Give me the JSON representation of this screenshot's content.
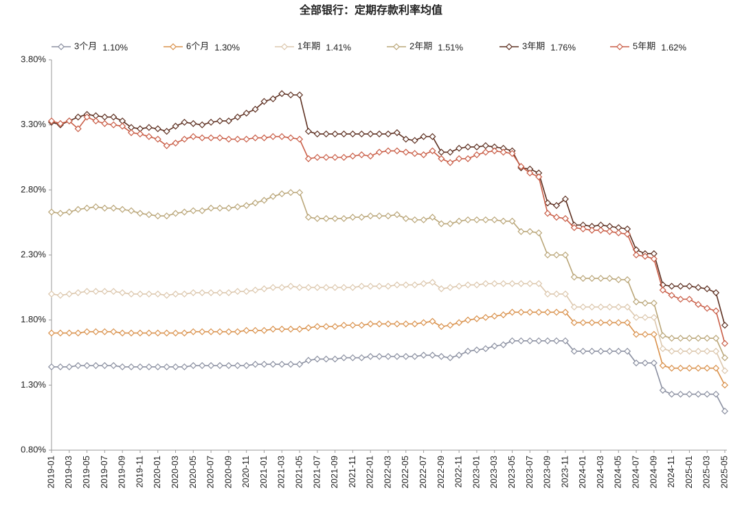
{
  "chart_data": {
    "type": "line",
    "title": "全部银行：定期存款利率均值",
    "categories": [
      "2019-01",
      null,
      "2019-03",
      null,
      "2019-05",
      null,
      "2019-07",
      null,
      "2019-09",
      null,
      "2019-11",
      null,
      "2020-01",
      null,
      "2020-03",
      null,
      "2020-05",
      null,
      "2020-07",
      null,
      "2020-09",
      null,
      "2020-11",
      null,
      "2021-01",
      null,
      "2021-03",
      null,
      "2021-05",
      null,
      "2021-07",
      null,
      "2021-09",
      null,
      "2021-11",
      null,
      "2022-01",
      null,
      "2022-03",
      null,
      "2022-05",
      null,
      "2022-07",
      null,
      "2022-09",
      null,
      "2022-11",
      null,
      "2023-01",
      null,
      "2023-03",
      null,
      "2023-05",
      null,
      "2023-07",
      null,
      "2023-09",
      null,
      "2023-11",
      null,
      "2024-01",
      null,
      "2024-03",
      null,
      "2024-05",
      null,
      "2024-07",
      null,
      "2024-09",
      null,
      "2024-11",
      null,
      "2025-01",
      null,
      "2025-03",
      null,
      "2025-05"
    ],
    "ylim": [
      0.8,
      3.8
    ],
    "yticks": [
      {
        "value": 0.8,
        "label": "0.80%"
      },
      {
        "value": 1.3,
        "label": "1.30%"
      },
      {
        "value": 1.8,
        "label": "1.80%"
      },
      {
        "value": 2.3,
        "label": "2.30%"
      },
      {
        "value": 2.8,
        "label": "2.80%"
      },
      {
        "value": 3.3,
        "label": "3.30%"
      },
      {
        "value": 3.8,
        "label": "3.80%"
      }
    ],
    "grid": false,
    "legend": "top",
    "series": [
      {
        "name": "3个月",
        "last_label": "1.10%",
        "color": "#8a8fa0",
        "values": [
          1.44,
          1.44,
          1.44,
          1.45,
          1.45,
          1.45,
          1.45,
          1.45,
          1.44,
          1.44,
          1.44,
          1.44,
          1.44,
          1.44,
          1.44,
          1.44,
          1.45,
          1.45,
          1.45,
          1.45,
          1.45,
          1.45,
          1.45,
          1.46,
          1.46,
          1.46,
          1.46,
          1.46,
          1.46,
          1.49,
          1.5,
          1.5,
          1.5,
          1.51,
          1.51,
          1.51,
          1.52,
          1.52,
          1.52,
          1.52,
          1.52,
          1.52,
          1.53,
          1.53,
          1.52,
          1.51,
          1.53,
          1.56,
          1.57,
          1.58,
          1.6,
          1.61,
          1.64,
          1.64,
          1.64,
          1.64,
          1.64,
          1.64,
          1.64,
          1.56,
          1.56,
          1.56,
          1.56,
          1.56,
          1.56,
          1.56,
          1.47,
          1.47,
          1.47,
          1.26,
          1.23,
          1.23,
          1.23,
          1.23,
          1.23,
          1.23,
          1.1
        ]
      },
      {
        "name": "6个月",
        "last_label": "1.30%",
        "color": "#d9904a",
        "values": [
          1.7,
          1.7,
          1.7,
          1.7,
          1.71,
          1.71,
          1.71,
          1.71,
          1.7,
          1.7,
          1.7,
          1.7,
          1.7,
          1.7,
          1.7,
          1.7,
          1.71,
          1.71,
          1.71,
          1.71,
          1.71,
          1.71,
          1.72,
          1.72,
          1.72,
          1.73,
          1.73,
          1.73,
          1.73,
          1.74,
          1.75,
          1.75,
          1.75,
          1.76,
          1.76,
          1.76,
          1.77,
          1.77,
          1.77,
          1.77,
          1.77,
          1.77,
          1.78,
          1.79,
          1.75,
          1.76,
          1.78,
          1.8,
          1.81,
          1.82,
          1.83,
          1.84,
          1.86,
          1.86,
          1.86,
          1.86,
          1.86,
          1.86,
          1.86,
          1.78,
          1.78,
          1.78,
          1.78,
          1.78,
          1.78,
          1.78,
          1.69,
          1.69,
          1.69,
          1.45,
          1.43,
          1.43,
          1.43,
          1.43,
          1.43,
          1.43,
          1.3
        ]
      },
      {
        "name": "1年期",
        "last_label": "1.41%",
        "color": "#dcc7ad",
        "values": [
          2.0,
          1.99,
          2.0,
          2.01,
          2.02,
          2.02,
          2.02,
          2.02,
          2.01,
          2.0,
          2.0,
          2.0,
          2.0,
          1.99,
          2.0,
          2.0,
          2.01,
          2.01,
          2.01,
          2.01,
          2.01,
          2.02,
          2.02,
          2.03,
          2.04,
          2.05,
          2.05,
          2.06,
          2.05,
          2.05,
          2.05,
          2.05,
          2.05,
          2.05,
          2.05,
          2.06,
          2.06,
          2.06,
          2.06,
          2.07,
          2.07,
          2.07,
          2.08,
          2.09,
          2.04,
          2.05,
          2.06,
          2.07,
          2.07,
          2.08,
          2.08,
          2.08,
          2.08,
          2.08,
          2.08,
          2.08,
          2.0,
          2.0,
          2.0,
          1.9,
          1.9,
          1.9,
          1.9,
          1.9,
          1.9,
          1.9,
          1.82,
          1.82,
          1.82,
          1.58,
          1.56,
          1.56,
          1.56,
          1.56,
          1.56,
          1.56,
          1.41
        ]
      },
      {
        "name": "2年期",
        "last_label": "1.51%",
        "color": "#b9a577",
        "values": [
          2.63,
          2.62,
          2.63,
          2.65,
          2.66,
          2.67,
          2.66,
          2.66,
          2.65,
          2.64,
          2.62,
          2.61,
          2.6,
          2.6,
          2.62,
          2.63,
          2.64,
          2.64,
          2.66,
          2.66,
          2.66,
          2.67,
          2.68,
          2.7,
          2.72,
          2.75,
          2.77,
          2.78,
          2.78,
          2.59,
          2.58,
          2.58,
          2.58,
          2.58,
          2.59,
          2.59,
          2.6,
          2.6,
          2.6,
          2.61,
          2.58,
          2.57,
          2.57,
          2.59,
          2.54,
          2.54,
          2.56,
          2.57,
          2.57,
          2.57,
          2.57,
          2.56,
          2.56,
          2.48,
          2.48,
          2.47,
          2.3,
          2.3,
          2.3,
          2.13,
          2.12,
          2.12,
          2.12,
          2.12,
          2.11,
          2.11,
          1.94,
          1.93,
          1.93,
          1.68,
          1.66,
          1.66,
          1.66,
          1.66,
          1.66,
          1.66,
          1.51
        ]
      },
      {
        "name": "3年期",
        "last_label": "1.76%",
        "color": "#5c2e1f",
        "values": [
          3.32,
          3.3,
          3.33,
          3.36,
          3.38,
          3.37,
          3.36,
          3.36,
          3.33,
          3.28,
          3.27,
          3.28,
          3.27,
          3.25,
          3.29,
          3.32,
          3.31,
          3.3,
          3.32,
          3.33,
          3.33,
          3.36,
          3.39,
          3.42,
          3.48,
          3.5,
          3.54,
          3.53,
          3.53,
          3.25,
          3.23,
          3.23,
          3.23,
          3.23,
          3.23,
          3.23,
          3.23,
          3.23,
          3.23,
          3.24,
          3.19,
          3.18,
          3.21,
          3.21,
          3.09,
          3.09,
          3.12,
          3.13,
          3.13,
          3.14,
          3.13,
          3.12,
          3.1,
          2.97,
          2.96,
          2.93,
          2.7,
          2.68,
          2.73,
          2.53,
          2.53,
          2.52,
          2.53,
          2.52,
          2.51,
          2.5,
          2.34,
          2.31,
          2.31,
          2.07,
          2.06,
          2.06,
          2.06,
          2.05,
          2.04,
          2.01,
          1.76
        ]
      },
      {
        "name": "5年期",
        "last_label": "1.62%",
        "color": "#c95c45",
        "values": [
          3.33,
          3.31,
          3.33,
          3.27,
          3.36,
          3.33,
          3.31,
          3.3,
          3.29,
          3.24,
          3.23,
          3.21,
          3.19,
          3.14,
          3.16,
          3.19,
          3.21,
          3.2,
          3.2,
          3.2,
          3.19,
          3.19,
          3.19,
          3.2,
          3.2,
          3.21,
          3.21,
          3.2,
          3.19,
          3.04,
          3.05,
          3.05,
          3.05,
          3.05,
          3.06,
          3.07,
          3.06,
          3.09,
          3.1,
          3.1,
          3.09,
          3.08,
          3.07,
          3.1,
          3.04,
          3.01,
          3.04,
          3.04,
          3.07,
          3.09,
          3.1,
          3.09,
          3.08,
          2.98,
          2.93,
          2.9,
          2.62,
          2.59,
          2.58,
          2.51,
          2.5,
          2.49,
          2.49,
          2.48,
          2.47,
          2.46,
          2.3,
          2.29,
          2.27,
          2.03,
          1.99,
          1.96,
          1.96,
          1.92,
          1.89,
          1.87,
          1.62
        ]
      }
    ]
  }
}
